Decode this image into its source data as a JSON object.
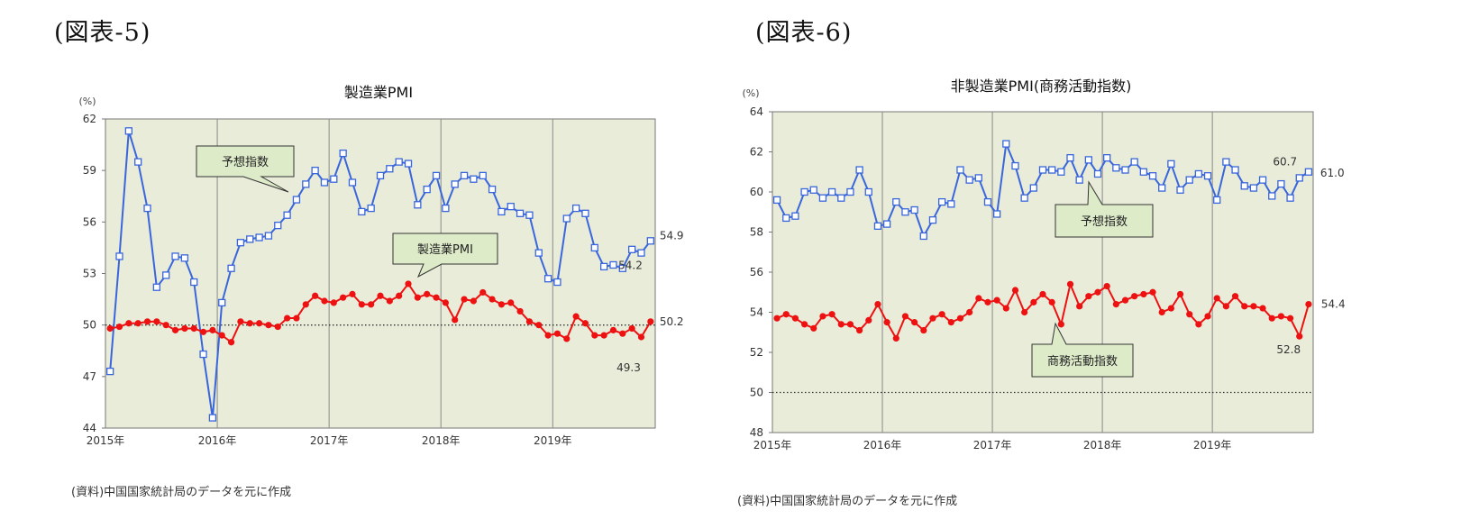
{
  "figures": [
    {
      "heading": "(図表-5)",
      "source": "(資料)中国国家統計局のデータを元に作成"
    },
    {
      "heading": "(図表-6)",
      "source": "(資料)中国国家統計局のデータを元に作成"
    }
  ],
  "chart_data": [
    {
      "type": "line",
      "title": "製造業PMI",
      "ylabel": "(%)",
      "ylim": [
        44,
        62
      ],
      "yticks": [
        44,
        47,
        50,
        53,
        56,
        59,
        62
      ],
      "x_labels": [
        "2015年",
        "2016年",
        "2017年",
        "2018年",
        "2019年"
      ],
      "x_start": "2015-01",
      "months": 59,
      "reference_line": 50,
      "grid": "vertical at year start",
      "plot_background": "#e8ecd9",
      "series": [
        {
          "name": "予想指数",
          "color": "#3a66dc",
          "marker": "open-square",
          "values": [
            47.3,
            54.0,
            61.3,
            59.5,
            56.8,
            52.2,
            52.9,
            54.0,
            53.9,
            52.5,
            48.3,
            44.6,
            51.3,
            53.3,
            54.8,
            55.0,
            55.1,
            55.2,
            55.8,
            56.4,
            57.3,
            58.2,
            59.0,
            58.3,
            58.5,
            60.0,
            58.3,
            56.6,
            56.8,
            58.7,
            59.1,
            59.5,
            59.4,
            57.0,
            57.9,
            58.7,
            56.8,
            58.2,
            58.7,
            58.5,
            58.7,
            57.9,
            56.6,
            56.9,
            56.5,
            56.4,
            54.2,
            52.7,
            52.5,
            56.2,
            56.8,
            56.5,
            54.5,
            53.4,
            53.5,
            53.3,
            54.4,
            54.2,
            54.9
          ],
          "labels": [
            {
              "index": 58,
              "text": "54.9"
            },
            {
              "index": 57,
              "text": "54.2"
            }
          ]
        },
        {
          "name": "製造業PMI",
          "color": "#ee1111",
          "marker": "filled-circle",
          "values": [
            49.8,
            49.9,
            50.1,
            50.1,
            50.2,
            50.2,
            50.0,
            49.7,
            49.8,
            49.8,
            49.6,
            49.7,
            49.4,
            49.0,
            50.2,
            50.1,
            50.1,
            50.0,
            49.9,
            50.4,
            50.4,
            51.2,
            51.7,
            51.4,
            51.3,
            51.6,
            51.8,
            51.2,
            51.2,
            51.7,
            51.4,
            51.7,
            52.4,
            51.6,
            51.8,
            51.6,
            51.3,
            50.3,
            51.5,
            51.4,
            51.9,
            51.5,
            51.2,
            51.3,
            50.8,
            50.2,
            50.0,
            49.4,
            49.5,
            49.2,
            50.5,
            50.1,
            49.4,
            49.4,
            49.7,
            49.5,
            49.8,
            49.3,
            50.2
          ],
          "labels": [
            {
              "index": 58,
              "text": "50.2"
            },
            {
              "index": 57,
              "text": "49.3"
            }
          ]
        }
      ],
      "callouts": [
        "予想指数",
        "製造業PMI"
      ]
    },
    {
      "type": "line",
      "title": "非製造業PMI(商務活動指数)",
      "ylabel": "(%)",
      "ylim": [
        48,
        64
      ],
      "yticks": [
        48,
        50,
        52,
        54,
        56,
        58,
        60,
        62,
        64
      ],
      "x_labels": [
        "2015年",
        "2016年",
        "2017年",
        "2018年",
        "2019年"
      ],
      "x_start": "2015-01",
      "months": 59,
      "reference_line": 50,
      "grid": "vertical at year start",
      "plot_background": "#e8ecd9",
      "series": [
        {
          "name": "予想指数",
          "color": "#3a66dc",
          "marker": "open-square",
          "values": [
            59.6,
            58.7,
            58.8,
            60.0,
            60.1,
            59.7,
            60.0,
            59.7,
            60.0,
            61.1,
            60.0,
            58.3,
            58.4,
            59.5,
            59.0,
            59.1,
            57.8,
            58.6,
            59.5,
            59.4,
            61.1,
            60.6,
            60.7,
            59.5,
            58.9,
            62.4,
            61.3,
            59.7,
            60.2,
            61.1,
            61.1,
            61.0,
            61.7,
            60.6,
            61.6,
            60.9,
            61.7,
            61.2,
            61.1,
            61.5,
            61.0,
            60.8,
            60.2,
            61.4,
            60.1,
            60.6,
            60.9,
            60.8,
            59.6,
            61.5,
            61.1,
            60.3,
            60.2,
            60.6,
            59.8,
            60.4,
            59.7,
            60.7,
            61.0
          ],
          "labels": [
            {
              "index": 58,
              "text": "61.0"
            },
            {
              "index": 57,
              "text": "60.7"
            }
          ]
        },
        {
          "name": "商務活動指数",
          "color": "#ee1111",
          "marker": "filled-circle",
          "values": [
            53.7,
            53.9,
            53.7,
            53.4,
            53.2,
            53.8,
            53.9,
            53.4,
            53.4,
            53.1,
            53.6,
            54.4,
            53.5,
            52.7,
            53.8,
            53.5,
            53.1,
            53.7,
            53.9,
            53.5,
            53.7,
            54.0,
            54.7,
            54.5,
            54.6,
            54.2,
            55.1,
            54.0,
            54.5,
            54.9,
            54.5,
            53.4,
            55.4,
            54.3,
            54.8,
            55.0,
            55.3,
            54.4,
            54.6,
            54.8,
            54.9,
            55.0,
            54.0,
            54.2,
            54.9,
            53.9,
            53.4,
            53.8,
            54.7,
            54.3,
            54.8,
            54.3,
            54.3,
            54.2,
            53.7,
            53.8,
            53.7,
            52.8,
            54.4
          ],
          "labels": [
            {
              "index": 58,
              "text": "54.4"
            },
            {
              "index": 57,
              "text": "52.8"
            }
          ]
        }
      ],
      "callouts": [
        "予想指数",
        "商務活動指数"
      ]
    }
  ]
}
